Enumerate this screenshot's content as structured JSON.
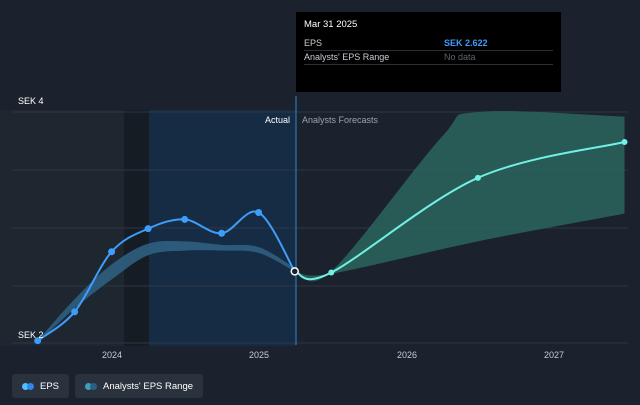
{
  "tooltip": {
    "date": "Mar 31 2025",
    "rows": [
      {
        "label": "EPS",
        "value": "SEK 2.622"
      },
      {
        "label": "Analysts' EPS Range",
        "value": "No data"
      }
    ]
  },
  "chart_data": {
    "type": "line",
    "x_ticks": [
      "2024",
      "2025",
      "2026",
      "2027"
    ],
    "y_ticks": [
      "SEK 2",
      "SEK 4"
    ],
    "ylim": [
      2,
      4
    ],
    "regions": {
      "actual_label": "Actual",
      "forecast_label": "Analysts Forecasts"
    },
    "series": [
      {
        "name": "EPS",
        "color": "#3e9dfb",
        "points": [
          {
            "x": "2023-06-30",
            "y": 2.02
          },
          {
            "x": "2023-09-30",
            "y": 2.27
          },
          {
            "x": "2023-12-31",
            "y": 2.79
          },
          {
            "x": "2024-03-31",
            "y": 2.99
          },
          {
            "x": "2024-06-30",
            "y": 3.07
          },
          {
            "x": "2024-09-30",
            "y": 2.95
          },
          {
            "x": "2024-12-31",
            "y": 3.13
          },
          {
            "x": "2025-03-31",
            "y": 2.62
          }
        ]
      },
      {
        "name": "EPS forecast",
        "color": "#71f0e6",
        "points": [
          {
            "x": "2025-03-31",
            "y": 2.62
          },
          {
            "x": "2025-06-30",
            "y": 2.61
          },
          {
            "x": "2026-06-30",
            "y": 3.43
          },
          {
            "x": "2027-06-30",
            "y": 3.74
          }
        ]
      },
      {
        "name": "Analysts' EPS Range",
        "color": "#2f6f8a",
        "lower": [
          {
            "x": "2023-06-30",
            "y": 2.0
          },
          {
            "x": "2023-09-30",
            "y": 2.3
          },
          {
            "x": "2023-12-31",
            "y": 2.55
          },
          {
            "x": "2024-03-31",
            "y": 2.76
          },
          {
            "x": "2024-06-30",
            "y": 2.8
          },
          {
            "x": "2024-09-30",
            "y": 2.8
          },
          {
            "x": "2024-12-31",
            "y": 2.78
          },
          {
            "x": "2025-03-31",
            "y": 2.62
          }
        ],
        "upper": [
          {
            "x": "2023-06-30",
            "y": 2.02
          },
          {
            "x": "2023-09-30",
            "y": 2.38
          },
          {
            "x": "2023-12-31",
            "y": 2.68
          },
          {
            "x": "2024-03-31",
            "y": 2.86
          },
          {
            "x": "2024-06-30",
            "y": 2.88
          },
          {
            "x": "2024-09-30",
            "y": 2.85
          },
          {
            "x": "2024-12-31",
            "y": 2.83
          },
          {
            "x": "2025-03-31",
            "y": 2.65
          }
        ]
      },
      {
        "name": "Forecast range",
        "color": "#2e6d64",
        "lower": [
          {
            "x": "2025-03-31",
            "y": 2.62
          },
          {
            "x": "2025-06-30",
            "y": 2.6
          },
          {
            "x": "2026-06-30",
            "y": 2.88
          },
          {
            "x": "2027-06-30",
            "y": 3.12
          }
        ],
        "upper": [
          {
            "x": "2025-03-31",
            "y": 2.62
          },
          {
            "x": "2025-06-30",
            "y": 2.62
          },
          {
            "x": "2026-03-31",
            "y": 3.78
          },
          {
            "x": "2026-06-30",
            "y": 4.0
          },
          {
            "x": "2027-06-30",
            "y": 3.96
          }
        ]
      }
    ],
    "legend": [
      {
        "label": "EPS",
        "colors": [
          "#4fc0ff",
          "#2f87e8"
        ]
      },
      {
        "label": "Analysts' EPS Range",
        "colors": [
          "#3b9fc0",
          "#2d5f84"
        ]
      }
    ]
  }
}
